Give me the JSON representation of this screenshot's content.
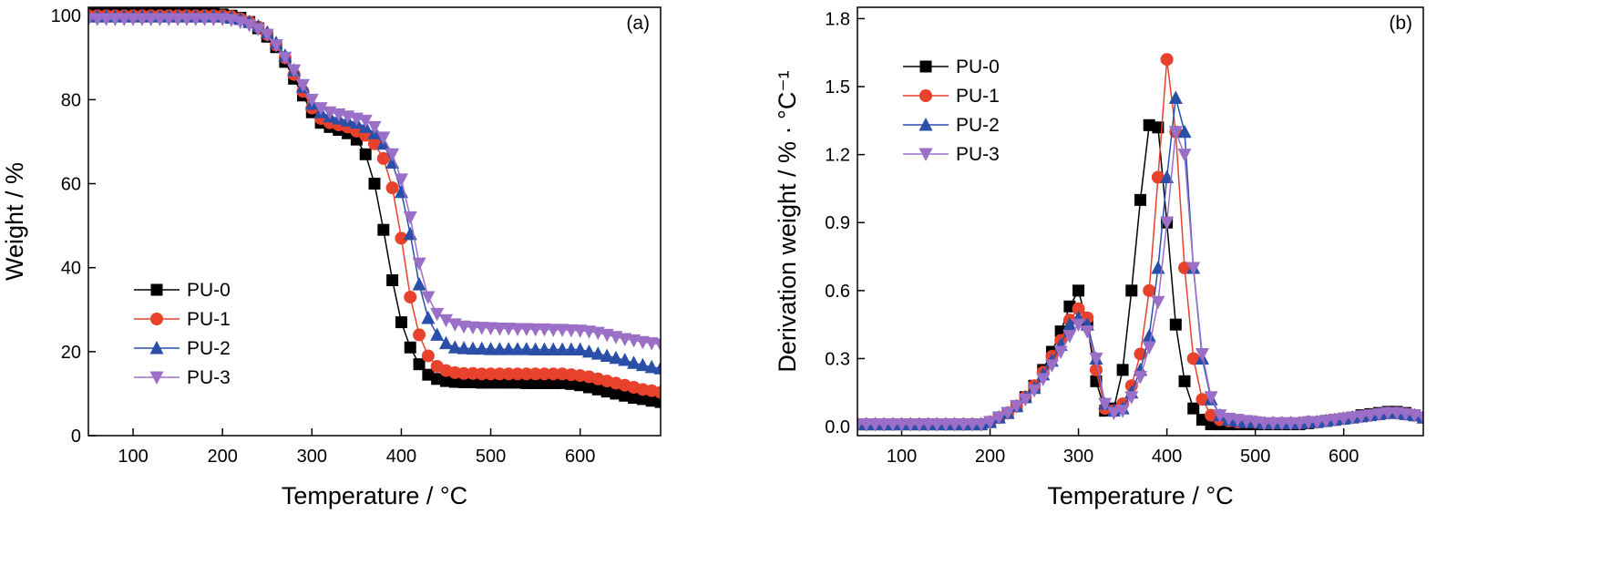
{
  "chart_data": [
    {
      "type": "line",
      "annotation": "(a)",
      "x_label": "Temperature / °C",
      "y_label": "Weight / %",
      "xlim": [
        50,
        690
      ],
      "ylim": [
        0,
        102
      ],
      "xticks": [
        100,
        200,
        300,
        400,
        500,
        600
      ],
      "yticks": [
        0,
        20,
        40,
        60,
        80,
        100
      ],
      "legend": "lower left",
      "x": [
        50,
        60,
        70,
        80,
        90,
        100,
        110,
        120,
        130,
        140,
        150,
        160,
        170,
        180,
        190,
        200,
        210,
        220,
        230,
        240,
        250,
        260,
        270,
        280,
        290,
        300,
        310,
        320,
        330,
        340,
        350,
        360,
        370,
        380,
        390,
        400,
        410,
        420,
        430,
        440,
        450,
        460,
        470,
        480,
        490,
        500,
        510,
        520,
        530,
        540,
        550,
        560,
        570,
        580,
        590,
        600,
        610,
        620,
        630,
        640,
        650,
        660,
        670,
        680,
        690
      ],
      "series": [
        {
          "name": "PU-0",
          "color": "#000000",
          "marker": "square",
          "values": [
            100.5,
            100.5,
            100.5,
            100.5,
            100.5,
            100.5,
            100.5,
            100.5,
            100.5,
            100.5,
            100.5,
            100.5,
            100.5,
            100.5,
            100.5,
            100.3,
            100,
            99.5,
            98.5,
            97,
            95,
            92.5,
            89,
            85,
            81,
            77,
            74.5,
            73.5,
            72.8,
            72,
            70.5,
            67,
            60,
            49,
            37,
            27,
            21,
            17,
            14.5,
            13.5,
            13,
            12.8,
            12.7,
            12.7,
            12.6,
            12.6,
            12.6,
            12.6,
            12.6,
            12.5,
            12.5,
            12.5,
            12.5,
            12.5,
            12.3,
            12,
            11.5,
            11,
            10.5,
            10,
            9.5,
            9,
            8.7,
            8.3,
            8
          ]
        },
        {
          "name": "PU-1",
          "color": "#e8412c",
          "marker": "circle",
          "values": [
            100,
            100,
            100,
            100,
            100,
            100,
            100,
            100,
            100,
            100,
            100,
            100,
            100,
            100,
            100,
            100,
            99.8,
            99.3,
            98.5,
            97.3,
            95.5,
            93,
            90,
            86,
            82,
            78,
            75.5,
            74.5,
            74,
            73.5,
            72.5,
            71.5,
            69.5,
            66,
            59,
            47,
            33,
            24,
            19,
            16.5,
            15.5,
            15,
            14.8,
            14.8,
            14.7,
            14.7,
            14.7,
            14.7,
            14.7,
            14.7,
            14.7,
            14.7,
            14.7,
            14.7,
            14.5,
            14.3,
            14,
            13.5,
            13,
            12.5,
            12,
            11.5,
            11,
            10.7,
            10.3
          ]
        },
        {
          "name": "PU-2",
          "color": "#2a4fa8",
          "marker": "triangle-up",
          "values": [
            99.8,
            99.8,
            99.8,
            99.8,
            99.8,
            99.8,
            99.8,
            99.8,
            99.8,
            99.8,
            99.8,
            99.8,
            99.8,
            99.8,
            99.8,
            99.8,
            99.5,
            99.2,
            98.5,
            97.5,
            96,
            93.5,
            90.5,
            87,
            83,
            79,
            77,
            76,
            75.5,
            75,
            74.5,
            73.5,
            72,
            69.5,
            65,
            58,
            48,
            36,
            28,
            24,
            22,
            21,
            20.8,
            20.7,
            20.7,
            20.6,
            20.6,
            20.6,
            20.6,
            20.6,
            20.5,
            20.5,
            20.5,
            20.5,
            20.5,
            20.5,
            20,
            19.5,
            19,
            18.5,
            18,
            17.3,
            16.8,
            16.3,
            16
          ]
        },
        {
          "name": "PU-3",
          "color": "#9b6fc7",
          "marker": "triangle-down",
          "values": [
            99.2,
            99.2,
            99.2,
            99.2,
            99.2,
            99.2,
            99.2,
            99.2,
            99.2,
            99.2,
            99.2,
            99.2,
            99.2,
            99.2,
            99.2,
            99.2,
            99,
            98.5,
            97.8,
            96.8,
            95.5,
            93,
            90,
            87,
            83.5,
            80,
            78,
            77,
            76.5,
            76,
            75.5,
            75,
            73.5,
            71,
            67,
            61,
            52,
            41,
            33,
            29,
            27.5,
            26.5,
            26,
            25.8,
            25.7,
            25.6,
            25.5,
            25.5,
            25.4,
            25.4,
            25.3,
            25.3,
            25.2,
            25.2,
            25.1,
            25,
            24.8,
            24.5,
            24,
            23.5,
            23,
            22.7,
            22.3,
            22,
            21.7
          ]
        }
      ]
    },
    {
      "type": "line",
      "annotation": "(b)",
      "x_label": "Temperature / °C",
      "y_label": "Derivation weight / % · °C⁻¹",
      "xlim": [
        50,
        690
      ],
      "ylim": [
        -0.04,
        1.85
      ],
      "xticks": [
        100,
        200,
        300,
        400,
        500,
        600
      ],
      "yticks": [
        {
          "value": 0,
          "label": "0.0"
        },
        0.3,
        0.6,
        0.9,
        1.2,
        1.5,
        1.8
      ],
      "legend": "upper left",
      "x": [
        50,
        60,
        70,
        80,
        90,
        100,
        110,
        120,
        130,
        140,
        150,
        160,
        170,
        180,
        190,
        200,
        210,
        220,
        230,
        240,
        250,
        260,
        270,
        280,
        290,
        300,
        310,
        320,
        330,
        340,
        350,
        360,
        370,
        380,
        390,
        400,
        410,
        420,
        430,
        440,
        450,
        460,
        470,
        480,
        490,
        500,
        510,
        520,
        530,
        540,
        550,
        560,
        570,
        580,
        590,
        600,
        610,
        620,
        630,
        640,
        650,
        660,
        670,
        680,
        690
      ],
      "series": [
        {
          "name": "PU-0",
          "color": "#000000",
          "marker": "square",
          "values": [
            0.01,
            0.01,
            0.01,
            0.01,
            0.01,
            0.01,
            0.01,
            0.01,
            0.01,
            0.01,
            0.01,
            0.01,
            0.01,
            0.01,
            0.01,
            0.02,
            0.04,
            0.06,
            0.09,
            0.13,
            0.18,
            0.25,
            0.33,
            0.42,
            0.53,
            0.6,
            0.45,
            0.2,
            0.07,
            0.08,
            0.25,
            0.6,
            1.0,
            1.33,
            1.32,
            0.9,
            0.45,
            0.2,
            0.08,
            0.03,
            0.01,
            0.01,
            0.01,
            0.01,
            0.01,
            0.01,
            0.01,
            0.01,
            0.01,
            0.01,
            0.01,
            0.015,
            0.02,
            0.025,
            0.03,
            0.035,
            0.04,
            0.05,
            0.055,
            0.06,
            0.065,
            0.065,
            0.06,
            0.05,
            0.04
          ]
        },
        {
          "name": "PU-1",
          "color": "#e8412c",
          "marker": "circle",
          "values": [
            0.01,
            0.01,
            0.01,
            0.01,
            0.01,
            0.01,
            0.01,
            0.01,
            0.01,
            0.01,
            0.01,
            0.01,
            0.01,
            0.01,
            0.01,
            0.02,
            0.04,
            0.06,
            0.09,
            0.13,
            0.18,
            0.24,
            0.31,
            0.38,
            0.47,
            0.52,
            0.48,
            0.25,
            0.08,
            0.07,
            0.1,
            0.18,
            0.32,
            0.6,
            1.1,
            1.62,
            1.3,
            0.7,
            0.3,
            0.12,
            0.05,
            0.03,
            0.025,
            0.02,
            0.02,
            0.02,
            0.015,
            0.015,
            0.015,
            0.015,
            0.015,
            0.02,
            0.02,
            0.025,
            0.03,
            0.035,
            0.04,
            0.045,
            0.05,
            0.055,
            0.06,
            0.06,
            0.055,
            0.05,
            0.04
          ]
        },
        {
          "name": "PU-2",
          "color": "#2a4fa8",
          "marker": "triangle-up",
          "values": [
            0.01,
            0.01,
            0.01,
            0.01,
            0.01,
            0.01,
            0.01,
            0.01,
            0.01,
            0.01,
            0.01,
            0.01,
            0.01,
            0.01,
            0.01,
            0.02,
            0.04,
            0.06,
            0.09,
            0.13,
            0.17,
            0.23,
            0.29,
            0.36,
            0.45,
            0.48,
            0.45,
            0.3,
            0.1,
            0.07,
            0.08,
            0.15,
            0.25,
            0.4,
            0.7,
            1.1,
            1.45,
            1.3,
            0.7,
            0.3,
            0.12,
            0.05,
            0.03,
            0.025,
            0.02,
            0.02,
            0.015,
            0.015,
            0.015,
            0.015,
            0.015,
            0.02,
            0.02,
            0.025,
            0.03,
            0.035,
            0.04,
            0.045,
            0.05,
            0.055,
            0.06,
            0.06,
            0.055,
            0.05,
            0.04
          ]
        },
        {
          "name": "PU-3",
          "color": "#9b6fc7",
          "marker": "triangle-down",
          "values": [
            0.01,
            0.01,
            0.01,
            0.01,
            0.01,
            0.01,
            0.01,
            0.01,
            0.01,
            0.01,
            0.01,
            0.01,
            0.01,
            0.01,
            0.01,
            0.02,
            0.04,
            0.06,
            0.09,
            0.12,
            0.16,
            0.21,
            0.27,
            0.33,
            0.4,
            0.45,
            0.42,
            0.3,
            0.1,
            0.06,
            0.07,
            0.13,
            0.22,
            0.35,
            0.55,
            0.9,
            1.3,
            1.2,
            0.7,
            0.32,
            0.13,
            0.05,
            0.035,
            0.03,
            0.025,
            0.02,
            0.015,
            0.015,
            0.015,
            0.015,
            0.015,
            0.02,
            0.02,
            0.025,
            0.03,
            0.035,
            0.04,
            0.045,
            0.05,
            0.055,
            0.06,
            0.06,
            0.055,
            0.05,
            0.04
          ]
        }
      ]
    }
  ]
}
